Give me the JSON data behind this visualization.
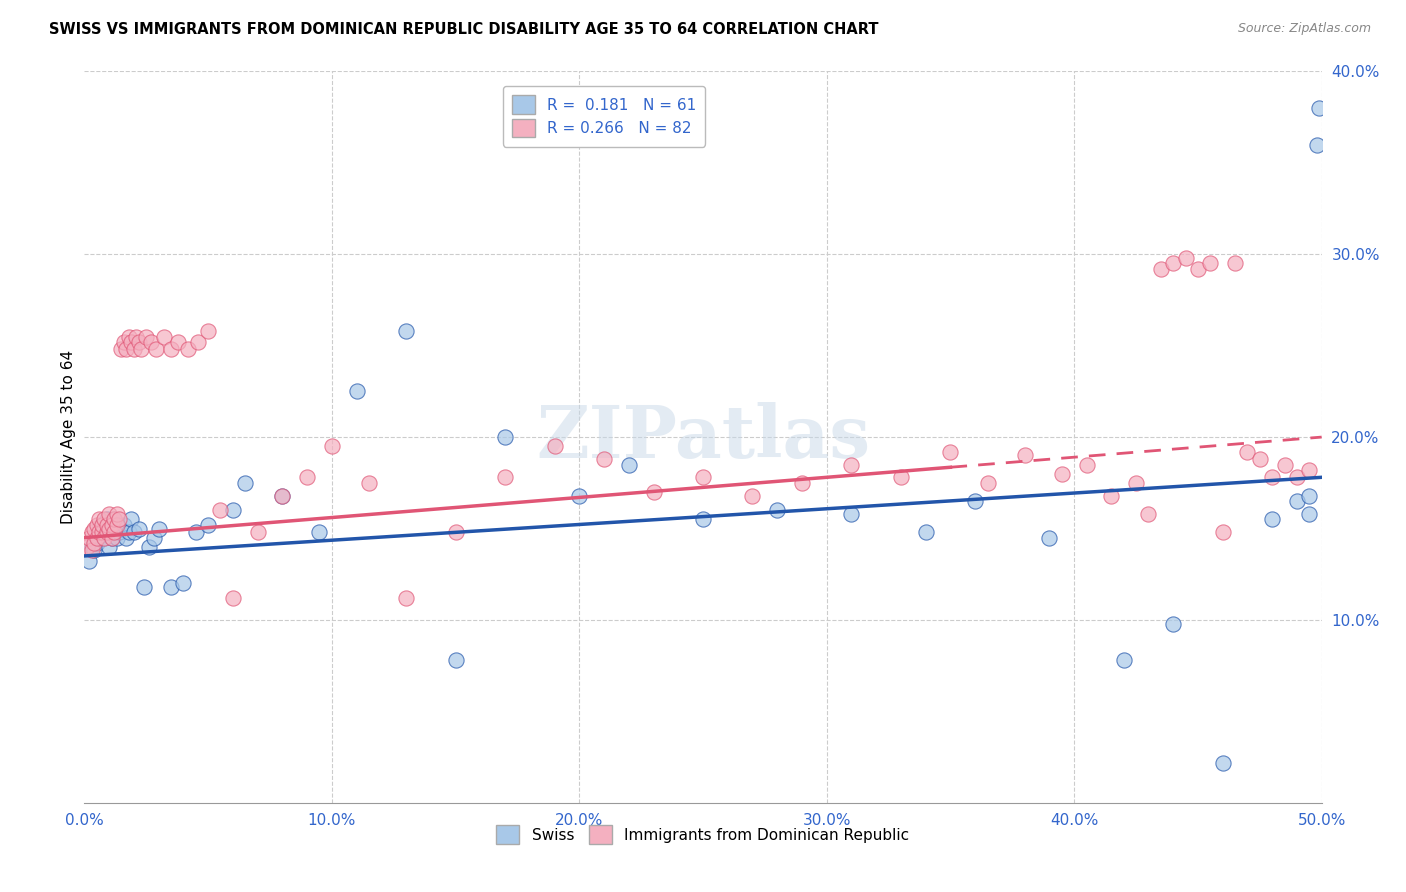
{
  "title": "SWISS VS IMMIGRANTS FROM DOMINICAN REPUBLIC DISABILITY AGE 35 TO 64 CORRELATION CHART",
  "source": "Source: ZipAtlas.com",
  "ylabel": "Disability Age 35 to 64",
  "xlim": [
    0,
    0.5
  ],
  "ylim": [
    0,
    0.4
  ],
  "swiss_R": 0.181,
  "swiss_N": 61,
  "dr_R": 0.266,
  "dr_N": 82,
  "swiss_color": "#a8c8e8",
  "dr_color": "#f4b0c0",
  "swiss_line_color": "#2255aa",
  "dr_line_color": "#e05575",
  "swiss_line_y0": 0.135,
  "swiss_line_y1": 0.178,
  "dr_line_y0": 0.145,
  "dr_line_y1": 0.2,
  "swiss_x": [
    0.002,
    0.003,
    0.004,
    0.005,
    0.006,
    0.006,
    0.007,
    0.007,
    0.008,
    0.008,
    0.009,
    0.009,
    0.01,
    0.01,
    0.011,
    0.011,
    0.012,
    0.012,
    0.013,
    0.013,
    0.014,
    0.015,
    0.016,
    0.017,
    0.018,
    0.019,
    0.02,
    0.022,
    0.024,
    0.026,
    0.028,
    0.03,
    0.035,
    0.04,
    0.045,
    0.05,
    0.06,
    0.065,
    0.08,
    0.095,
    0.11,
    0.13,
    0.15,
    0.17,
    0.2,
    0.22,
    0.25,
    0.28,
    0.31,
    0.34,
    0.36,
    0.39,
    0.42,
    0.44,
    0.46,
    0.48,
    0.49,
    0.495,
    0.495,
    0.498,
    0.499
  ],
  "swiss_y": [
    0.132,
    0.14,
    0.138,
    0.142,
    0.145,
    0.15,
    0.148,
    0.152,
    0.145,
    0.15,
    0.148,
    0.155,
    0.14,
    0.152,
    0.145,
    0.148,
    0.15,
    0.155,
    0.145,
    0.152,
    0.148,
    0.15,
    0.152,
    0.145,
    0.148,
    0.155,
    0.148,
    0.15,
    0.118,
    0.14,
    0.145,
    0.15,
    0.118,
    0.12,
    0.148,
    0.152,
    0.16,
    0.175,
    0.168,
    0.148,
    0.225,
    0.258,
    0.078,
    0.2,
    0.168,
    0.185,
    0.155,
    0.16,
    0.158,
    0.148,
    0.165,
    0.145,
    0.078,
    0.098,
    0.022,
    0.155,
    0.165,
    0.158,
    0.168,
    0.36,
    0.38
  ],
  "dr_x": [
    0.001,
    0.002,
    0.003,
    0.003,
    0.004,
    0.004,
    0.005,
    0.005,
    0.006,
    0.006,
    0.007,
    0.007,
    0.008,
    0.008,
    0.009,
    0.009,
    0.01,
    0.01,
    0.011,
    0.011,
    0.012,
    0.012,
    0.013,
    0.013,
    0.014,
    0.015,
    0.016,
    0.017,
    0.018,
    0.019,
    0.02,
    0.021,
    0.022,
    0.023,
    0.025,
    0.027,
    0.029,
    0.032,
    0.035,
    0.038,
    0.042,
    0.046,
    0.05,
    0.055,
    0.06,
    0.07,
    0.08,
    0.09,
    0.1,
    0.115,
    0.13,
    0.15,
    0.17,
    0.19,
    0.21,
    0.23,
    0.25,
    0.27,
    0.29,
    0.31,
    0.33,
    0.35,
    0.365,
    0.38,
    0.395,
    0.405,
    0.415,
    0.425,
    0.43,
    0.435,
    0.44,
    0.445,
    0.45,
    0.455,
    0.46,
    0.465,
    0.47,
    0.475,
    0.48,
    0.485,
    0.49,
    0.495
  ],
  "dr_y": [
    0.14,
    0.145,
    0.148,
    0.138,
    0.142,
    0.15,
    0.145,
    0.152,
    0.148,
    0.155,
    0.148,
    0.152,
    0.145,
    0.155,
    0.148,
    0.152,
    0.15,
    0.158,
    0.145,
    0.152,
    0.148,
    0.155,
    0.152,
    0.158,
    0.155,
    0.248,
    0.252,
    0.248,
    0.255,
    0.252,
    0.248,
    0.255,
    0.252,
    0.248,
    0.255,
    0.252,
    0.248,
    0.255,
    0.248,
    0.252,
    0.248,
    0.252,
    0.258,
    0.16,
    0.112,
    0.148,
    0.168,
    0.178,
    0.195,
    0.175,
    0.112,
    0.148,
    0.178,
    0.195,
    0.188,
    0.17,
    0.178,
    0.168,
    0.175,
    0.185,
    0.178,
    0.192,
    0.175,
    0.19,
    0.18,
    0.185,
    0.168,
    0.175,
    0.158,
    0.292,
    0.295,
    0.298,
    0.292,
    0.295,
    0.148,
    0.295,
    0.192,
    0.188,
    0.178,
    0.185,
    0.178,
    0.182
  ]
}
